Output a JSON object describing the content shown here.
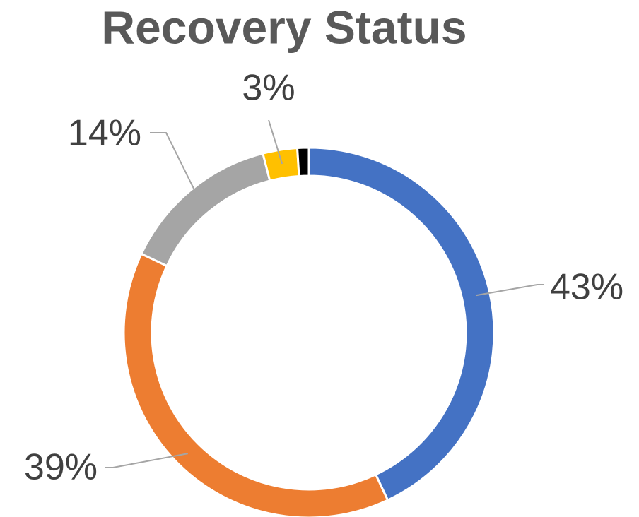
{
  "chart_data": {
    "type": "donut",
    "title": "Recovery Status",
    "values": [
      43,
      39,
      14,
      3,
      1
    ],
    "value_labels": [
      "43%",
      "39%",
      "14%",
      "3%",
      null
    ],
    "colors": [
      "#4472c4",
      "#ed7d31",
      "#a5a5a5",
      "#ffc000",
      "#000000"
    ]
  }
}
